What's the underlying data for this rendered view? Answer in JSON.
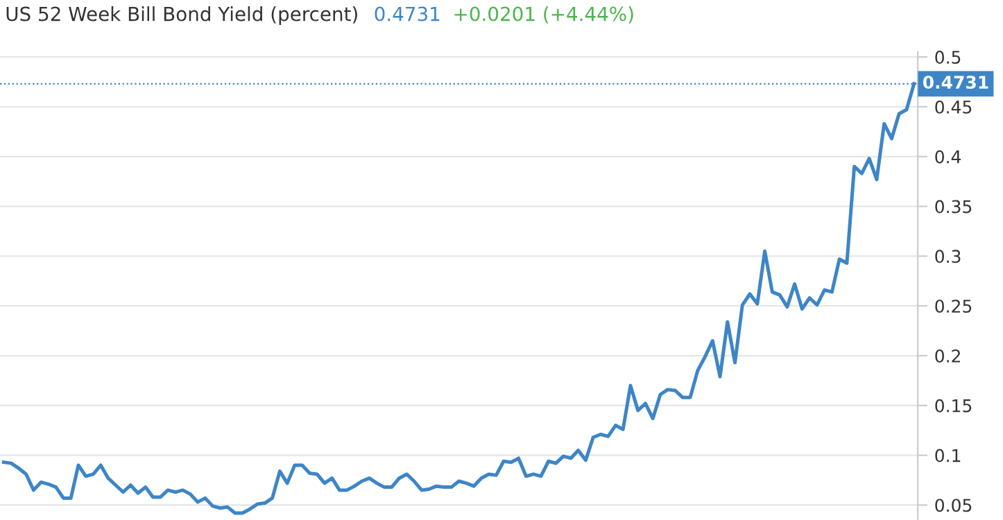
{
  "chart_data": {
    "type": "line",
    "title": "US 52 Week Bill Bond Yield (percent)",
    "annotations": [
      "0.4731",
      "+0.0201 (+4.44%)"
    ],
    "categories": [
      null,
      null,
      null,
      null,
      null,
      null,
      null,
      null,
      null,
      null,
      null,
      null,
      null,
      null,
      null,
      null,
      null,
      null,
      null,
      null,
      null,
      null,
      null,
      null,
      null,
      null,
      null,
      null,
      null,
      null,
      null,
      null,
      null,
      null,
      null,
      null,
      null,
      null,
      null,
      null,
      null,
      null,
      null,
      null,
      null,
      null,
      null,
      null,
      null,
      null,
      null,
      null,
      null,
      null,
      null,
      null,
      null,
      null,
      null,
      null,
      null,
      null,
      null,
      null,
      null,
      null,
      null,
      null,
      null,
      null,
      null,
      null,
      null,
      null,
      null,
      null,
      null,
      null,
      null,
      null,
      null,
      null,
      null,
      null,
      null,
      null,
      null,
      null,
      null,
      null,
      null,
      null,
      null,
      null,
      null,
      null,
      null,
      null,
      null,
      null,
      null,
      null,
      null,
      null,
      null,
      null,
      null,
      null,
      null,
      null,
      null,
      null,
      null,
      null,
      null,
      null,
      null,
      null,
      null,
      null,
      null,
      null,
      null
    ],
    "series": [
      {
        "color": "#3d85c6",
        "values": [
          0.093,
          0.092,
          0.087,
          0.081,
          0.065,
          0.073,
          0.071,
          0.068,
          0.057,
          0.057,
          0.09,
          0.079,
          0.081,
          0.09,
          0.077,
          0.07,
          0.063,
          0.07,
          0.062,
          0.068,
          0.058,
          0.058,
          0.065,
          0.063,
          0.065,
          0.061,
          0.053,
          0.057,
          0.049,
          0.047,
          0.048,
          0.042,
          0.042,
          0.046,
          0.051,
          0.052,
          0.057,
          0.084,
          0.072,
          0.09,
          0.09,
          0.082,
          0.081,
          0.072,
          0.077,
          0.065,
          0.065,
          0.069,
          0.074,
          0.077,
          0.072,
          0.068,
          0.068,
          0.077,
          0.081,
          0.074,
          0.065,
          0.066,
          0.069,
          0.068,
          0.068,
          0.074,
          0.072,
          0.069,
          0.077,
          0.081,
          0.08,
          0.094,
          0.093,
          0.097,
          0.079,
          0.081,
          0.079,
          0.094,
          0.092,
          0.099,
          0.097,
          0.105,
          0.095,
          0.118,
          0.121,
          0.119,
          0.13,
          0.126,
          0.17,
          0.145,
          0.152,
          0.137,
          0.161,
          0.166,
          0.165,
          0.158,
          0.158,
          0.185,
          0.199,
          0.215,
          0.179,
          0.234,
          0.193,
          0.251,
          0.262,
          0.252,
          0.305,
          0.264,
          0.261,
          0.249,
          0.272,
          0.247,
          0.258,
          0.251,
          0.266,
          0.264,
          0.297,
          0.293,
          0.39,
          0.383,
          0.398,
          0.377,
          0.433,
          0.418,
          0.443,
          0.447,
          0.4731
        ]
      }
    ],
    "ylim": [
      0.035,
      0.505
    ],
    "yticks": [
      0.05,
      0.1,
      0.15,
      0.2,
      0.25,
      0.3,
      0.35,
      0.4,
      0.45,
      0.5
    ],
    "ref_lines": [
      {
        "axis": "y",
        "value": 0.4731,
        "label": "0.4731",
        "color": "#3d85c6",
        "line_style": "dotted"
      }
    ],
    "grid": "y",
    "tick_labels": "y",
    "legend": false,
    "marker": "none",
    "line_style": "solid"
  }
}
